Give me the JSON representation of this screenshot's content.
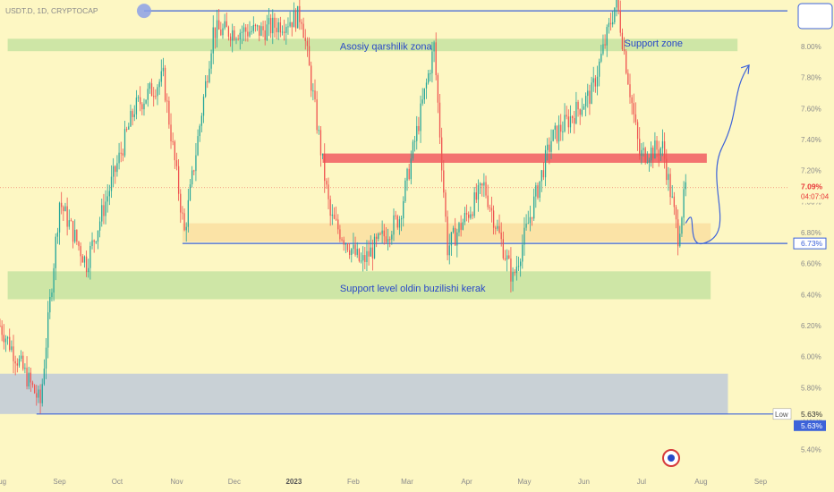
{
  "header": {
    "symbol": "USDT.D, 1D, CRYPTOCAP"
  },
  "colors": {
    "background": "#fdf7c3",
    "up": "#26a69a",
    "down": "#ef5350",
    "green_zone": "#c9e3a3",
    "red_zone": "#f26b6b",
    "orange_zone": "#fbe0a3",
    "gray_zone": "#c3ccd8",
    "line_blue": "#3d63d9",
    "text_blue": "#2848c8",
    "price_red": "#e8373a"
  },
  "price_badges": {
    "current_price": "7.09%",
    "countdown": "04:07:04",
    "support_level": "6.73%",
    "low_a": "5.63%",
    "low_b": "5.63%",
    "low_tag": "Low"
  },
  "annotations": {
    "resistance": "Asosiy qarshilik zona",
    "support_zone": "Support zone",
    "support_level": "Support level  oldin buzilishi kerak"
  },
  "icons": {
    "logo": "circle-logo-icon",
    "marker": "circle-marker-icon",
    "drawing": "square-box-icon"
  },
  "chart_data": {
    "type": "candlestick",
    "y_axis": {
      "ticks": [
        "8.00%",
        "7.80%",
        "7.60%",
        "7.40%",
        "7.20%",
        "7.00%",
        "6.80%",
        "6.60%",
        "6.40%",
        "6.20%",
        "6.00%",
        "5.80%",
        "5.60%",
        "5.40%"
      ],
      "range": [
        5.3,
        8.3
      ]
    },
    "x_axis": {
      "ticks": [
        "Aug",
        "Sep",
        "Oct",
        "Nov",
        "Dec",
        "2023",
        "Feb",
        "Mar",
        "Apr",
        "May",
        "Jun",
        "Jul",
        "Aug",
        "Sep"
      ],
      "range": [
        "2022-08-01",
        "2023-09-15"
      ]
    },
    "zones": [
      {
        "type": "resistance",
        "from": 7.97,
        "to": 8.05,
        "x_start": "2022-08-05",
        "x_end": "2023-08-20"
      },
      {
        "type": "resistance",
        "from": 7.25,
        "to": 7.31,
        "x_start": "2023-01-16",
        "x_end": "2023-08-04"
      },
      {
        "type": "support",
        "from": 6.74,
        "to": 6.86,
        "x_start": "2022-11-04",
        "x_end": "2023-08-06"
      },
      {
        "type": "support",
        "from": 6.37,
        "to": 6.55,
        "x_start": "2022-08-05",
        "x_end": "2023-08-06"
      },
      {
        "type": "support",
        "from": 5.63,
        "to": 5.89,
        "x_start": "2022-08-01",
        "x_end": "2023-08-15"
      }
    ],
    "levels": [
      8.23,
      6.73,
      5.63
    ],
    "trend_points": [
      [
        "2022-08-01",
        6.2
      ],
      [
        "2022-08-22",
        5.7
      ],
      [
        "2022-09-01",
        7.0
      ],
      [
        "2022-09-15",
        6.6
      ],
      [
        "2022-10-10",
        7.6
      ],
      [
        "2022-10-25",
        7.8
      ],
      [
        "2022-11-05",
        6.8
      ],
      [
        "2022-11-20",
        8.1
      ],
      [
        "2022-12-15",
        8.1
      ],
      [
        "2023-01-05",
        8.2
      ],
      [
        "2023-01-20",
        6.9
      ],
      [
        "2023-02-05",
        6.6
      ],
      [
        "2023-02-25",
        6.9
      ],
      [
        "2023-03-15",
        8.0
      ],
      [
        "2023-03-22",
        6.7
      ],
      [
        "2023-04-10",
        7.1
      ],
      [
        "2023-04-25",
        6.5
      ],
      [
        "2023-05-15",
        7.4
      ],
      [
        "2023-06-05",
        7.7
      ],
      [
        "2023-06-18",
        8.3
      ],
      [
        "2023-06-30",
        7.3
      ],
      [
        "2023-07-12",
        7.35
      ],
      [
        "2023-07-20",
        6.78
      ],
      [
        "2023-07-24",
        7.09
      ]
    ],
    "projection": [
      [
        "2023-07-24",
        6.86
      ],
      [
        "2023-08-02",
        6.73
      ],
      [
        "2023-08-12",
        7.35
      ],
      [
        "2023-08-26",
        7.88
      ]
    ],
    "current": 7.09,
    "low": 5.63
  }
}
